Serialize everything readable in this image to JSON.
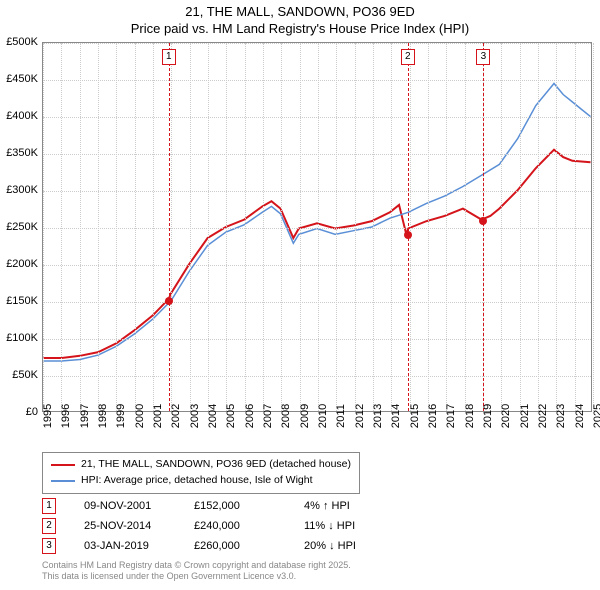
{
  "title": {
    "line1": "21, THE MALL, SANDOWN, PO36 9ED",
    "line2": "Price paid vs. HM Land Registry's House Price Index (HPI)"
  },
  "chart": {
    "type": "line",
    "background_color": "#ffffff",
    "grid_color": "#cccccc",
    "border_color": "#888888",
    "ylim": [
      0,
      500000
    ],
    "ytick_step": 50000,
    "yticks": [
      "£0",
      "£50K",
      "£100K",
      "£150K",
      "£200K",
      "£250K",
      "£300K",
      "£350K",
      "£400K",
      "£450K",
      "£500K"
    ],
    "xlim": [
      1995,
      2025
    ],
    "xticks": [
      1995,
      1996,
      1997,
      1998,
      1999,
      2000,
      2001,
      2002,
      2003,
      2004,
      2005,
      2006,
      2007,
      2008,
      2009,
      2010,
      2011,
      2012,
      2013,
      2014,
      2015,
      2016,
      2017,
      2018,
      2019,
      2020,
      2021,
      2022,
      2023,
      2024,
      2025
    ],
    "series": [
      {
        "id": "price_paid",
        "label": "21, THE MALL, SANDOWN, PO36 9ED (detached house)",
        "color": "#d4141a",
        "line_width": 2,
        "points": [
          [
            1995,
            72000
          ],
          [
            1996,
            72000
          ],
          [
            1997,
            75000
          ],
          [
            1998,
            80000
          ],
          [
            1999,
            92000
          ],
          [
            2000,
            110000
          ],
          [
            2001,
            130000
          ],
          [
            2001.86,
            152000
          ],
          [
            2002,
            160000
          ],
          [
            2003,
            200000
          ],
          [
            2004,
            235000
          ],
          [
            2005,
            250000
          ],
          [
            2006,
            260000
          ],
          [
            2007,
            278000
          ],
          [
            2007.5,
            285000
          ],
          [
            2008,
            275000
          ],
          [
            2008.7,
            235000
          ],
          [
            2009,
            248000
          ],
          [
            2010,
            255000
          ],
          [
            2011,
            248000
          ],
          [
            2012,
            252000
          ],
          [
            2013,
            258000
          ],
          [
            2014,
            270000
          ],
          [
            2014.5,
            280000
          ],
          [
            2014.9,
            240000
          ],
          [
            2015,
            248000
          ],
          [
            2016,
            258000
          ],
          [
            2017,
            265000
          ],
          [
            2018,
            275000
          ],
          [
            2019.02,
            260000
          ],
          [
            2019.5,
            265000
          ],
          [
            2020,
            275000
          ],
          [
            2021,
            300000
          ],
          [
            2022,
            330000
          ],
          [
            2023,
            355000
          ],
          [
            2023.5,
            345000
          ],
          [
            2024,
            340000
          ],
          [
            2025,
            338000
          ]
        ]
      },
      {
        "id": "hpi",
        "label": "HPI: Average price, detached house, Isle of Wight",
        "color": "#5a8fd6",
        "line_width": 1.5,
        "points": [
          [
            1995,
            68000
          ],
          [
            1996,
            68000
          ],
          [
            1997,
            70000
          ],
          [
            1998,
            76000
          ],
          [
            1999,
            88000
          ],
          [
            2000,
            105000
          ],
          [
            2001,
            125000
          ],
          [
            2002,
            150000
          ],
          [
            2003,
            190000
          ],
          [
            2004,
            225000
          ],
          [
            2005,
            243000
          ],
          [
            2006,
            253000
          ],
          [
            2007,
            270000
          ],
          [
            2007.5,
            278000
          ],
          [
            2008,
            268000
          ],
          [
            2008.7,
            228000
          ],
          [
            2009,
            240000
          ],
          [
            2010,
            248000
          ],
          [
            2011,
            240000
          ],
          [
            2012,
            245000
          ],
          [
            2013,
            250000
          ],
          [
            2014,
            262000
          ],
          [
            2015,
            270000
          ],
          [
            2016,
            282000
          ],
          [
            2017,
            292000
          ],
          [
            2018,
            305000
          ],
          [
            2019,
            320000
          ],
          [
            2020,
            335000
          ],
          [
            2021,
            370000
          ],
          [
            2022,
            415000
          ],
          [
            2023,
            445000
          ],
          [
            2023.5,
            430000
          ],
          [
            2024,
            420000
          ],
          [
            2024.5,
            410000
          ],
          [
            2025,
            400000
          ]
        ]
      }
    ],
    "events": [
      {
        "n": "1",
        "year": 2001.86,
        "value": 152000,
        "color": "#d4141a"
      },
      {
        "n": "2",
        "year": 2014.9,
        "value": 240000,
        "color": "#d4141a"
      },
      {
        "n": "3",
        "year": 2019.02,
        "value": 260000,
        "color": "#d4141a"
      }
    ]
  },
  "legend": {
    "items": [
      {
        "color": "#d4141a",
        "label": "21, THE MALL, SANDOWN, PO36 9ED (detached house)"
      },
      {
        "color": "#5a8fd6",
        "label": "HPI: Average price, detached house, Isle of Wight"
      }
    ]
  },
  "events_table": [
    {
      "n": "1",
      "color": "#d4141a",
      "date": "09-NOV-2001",
      "price": "£152,000",
      "delta": "4% ↑ HPI"
    },
    {
      "n": "2",
      "color": "#d4141a",
      "date": "25-NOV-2014",
      "price": "£240,000",
      "delta": "11% ↓ HPI"
    },
    {
      "n": "3",
      "color": "#d4141a",
      "date": "03-JAN-2019",
      "price": "£260,000",
      "delta": "20% ↓ HPI"
    }
  ],
  "footer": {
    "line1": "Contains HM Land Registry data © Crown copyright and database right 2025.",
    "line2": "This data is licensed under the Open Government Licence v3.0."
  }
}
